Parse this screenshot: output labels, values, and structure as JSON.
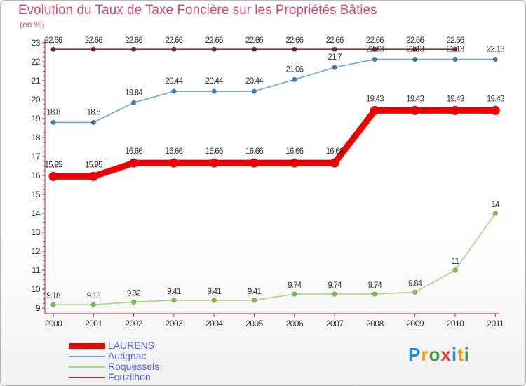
{
  "header": {
    "title": "Evolution du Taux de Taxe Foncière sur les Propriétés Bâties",
    "unit": "(en %)"
  },
  "logo": {
    "letters": [
      "P",
      "r",
      "o",
      "x",
      "i",
      "t",
      "i"
    ],
    "colors": [
      "#1e88e5",
      "#ff9800",
      "#43a047",
      "#e53935",
      "#1e88e5",
      "#ff9800",
      "#43a047"
    ]
  },
  "chart_data": {
    "type": "line",
    "title": "Evolution du Taux de Taxe Foncière sur les Propriétés Bâties",
    "ylabel": "(en %)",
    "xlabel": "",
    "ylim": [
      9,
      23
    ],
    "yticks": [
      "9",
      "10",
      "11",
      "12",
      "13",
      "14",
      "15",
      "16",
      "17",
      "18",
      "19",
      "20",
      "21",
      "22",
      "23"
    ],
    "categories": [
      "2000",
      "2001",
      "2002",
      "2003",
      "2004",
      "2005",
      "2006",
      "2007",
      "2008",
      "2009",
      "2010",
      "2011"
    ],
    "grid": false,
    "legend_position": "bottom-left",
    "series": [
      {
        "name": "LAURENS",
        "color": "#ee0000",
        "dot_fill": "#ee0000",
        "thick": true,
        "values": [
          15.95,
          15.95,
          16.66,
          16.66,
          16.66,
          16.66,
          16.66,
          16.66,
          19.43,
          19.43,
          19.43,
          19.43
        ],
        "labels": [
          "15.95",
          "15.95",
          "16.66",
          "16.66",
          "16.66",
          "16.66",
          "16.66",
          "16.66",
          "19.43",
          "19.43",
          "19.43",
          "19.43"
        ]
      },
      {
        "name": "Autignac",
        "color": "#6aa3d8",
        "dot_fill": "#2f7ec2",
        "thick": false,
        "values": [
          18.8,
          18.8,
          19.84,
          20.44,
          20.44,
          20.44,
          21.06,
          21.7,
          22.13,
          22.13,
          22.13,
          22.13
        ],
        "labels": [
          "18.8",
          "18.8",
          "19.84",
          "20.44",
          "20.44",
          "20.44",
          "21.06",
          "21.7",
          "22.13",
          "22.13",
          "22.13",
          "22.13"
        ]
      },
      {
        "name": "Roquessels",
        "color": "#a8d888",
        "dot_fill": "#7cc242",
        "thick": false,
        "values": [
          9.18,
          9.18,
          9.32,
          9.41,
          9.41,
          9.41,
          9.74,
          9.74,
          9.74,
          9.84,
          11,
          14
        ],
        "labels": [
          "9.18",
          "9.18",
          "9.32",
          "9.41",
          "9.41",
          "9.41",
          "9.74",
          "9.74",
          "9.74",
          "9.84",
          "11",
          "14"
        ]
      },
      {
        "name": "Fouzilhon",
        "color": "#8a3a3a",
        "dot_fill": "#6e1f1f",
        "thick": false,
        "values": [
          22.66,
          22.66,
          22.66,
          22.66,
          22.66,
          22.66,
          22.66,
          22.66,
          22.66,
          22.66,
          22.66,
          null
        ],
        "labels": [
          "22.66",
          "22.66",
          "22.66",
          "22.66",
          "22.66",
          "22.66",
          "22.66",
          "22.66",
          "22.66",
          "22.66",
          "22.66",
          null
        ]
      }
    ]
  }
}
